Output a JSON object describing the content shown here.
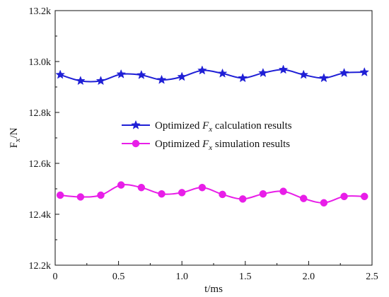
{
  "chart_data": {
    "type": "line",
    "xlabel": "t/ms",
    "ylabel": "F",
    "ylabel_sub": "x",
    "ylabel_unit": "/N",
    "xlim": [
      0,
      2.5
    ],
    "ylim": [
      12200,
      13200
    ],
    "x_ticks": [
      0,
      0.5,
      1.0,
      1.5,
      2.0,
      2.5
    ],
    "x_tick_labels": [
      "0",
      "0.5",
      "1.0",
      "1.5",
      "2.0",
      "2.5"
    ],
    "y_ticks": [
      12200,
      12400,
      12600,
      12800,
      13000,
      13200
    ],
    "y_tick_labels": [
      "12.2k",
      "12.4k",
      "12.6k",
      "12.8k",
      "13.0k",
      "13.2k"
    ],
    "grid": false,
    "legend_position": "center",
    "series": [
      {
        "name_prefix": "Optimized ",
        "name_var": "F",
        "name_sub": "x",
        "name_suffix": " calculation results",
        "color": "#1f1fd6",
        "marker": "star",
        "x": [
          0.04,
          0.2,
          0.36,
          0.52,
          0.68,
          0.84,
          1.0,
          1.16,
          1.32,
          1.48,
          1.64,
          1.8,
          1.96,
          2.12,
          2.28,
          2.44
        ],
        "y": [
          12948,
          12924,
          12924,
          12950,
          12947,
          12928,
          12940,
          12965,
          12953,
          12935,
          12955,
          12968,
          12948,
          12935,
          12955,
          12958
        ]
      },
      {
        "name_prefix": "Optimized ",
        "name_var": "F",
        "name_sub": "x",
        "name_suffix": " simulation results",
        "color": "#e81ee8",
        "marker": "circle",
        "x": [
          0.04,
          0.2,
          0.36,
          0.52,
          0.68,
          0.84,
          1.0,
          1.16,
          1.32,
          1.48,
          1.64,
          1.8,
          1.96,
          2.12,
          2.28,
          2.44
        ],
        "y": [
          12475,
          12468,
          12475,
          12515,
          12505,
          12480,
          12485,
          12505,
          12478,
          12460,
          12480,
          12490,
          12462,
          12445,
          12470,
          12470
        ]
      }
    ]
  },
  "colors": {
    "axis": "#111111",
    "series_1": "#1f1fd6",
    "series_2": "#e81ee8"
  }
}
